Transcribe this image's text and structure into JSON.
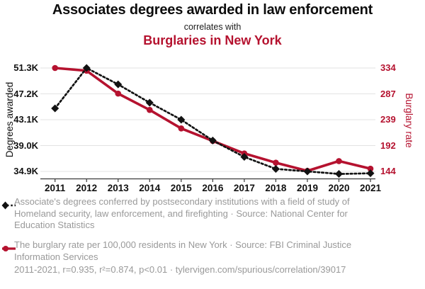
{
  "header": {
    "title": "Associates degrees awarded in law enforcement",
    "connector": "correlates with",
    "subtitle": "Burglaries in New York"
  },
  "colors": {
    "red": "#b5122f",
    "black": "#121212",
    "legend_gray": "#999999",
    "grid": "#e3e3e3",
    "axis": "#3a3a3a"
  },
  "chart_data": {
    "type": "line",
    "x": [
      2011,
      2012,
      2013,
      2014,
      2015,
      2016,
      2017,
      2018,
      2019,
      2020,
      2021
    ],
    "left_axis": {
      "label": "Degrees awarded",
      "tick_labels": [
        "51.3K",
        "47.2K",
        "43.1K",
        "39.0K",
        "34.9K"
      ],
      "tick_values": [
        51300,
        47200,
        43100,
        39000,
        34900
      ]
    },
    "right_axis": {
      "label": "Burglary rate",
      "tick_labels": [
        "334",
        "287",
        "239",
        "192",
        "144"
      ],
      "tick_values": [
        334,
        287,
        239,
        192,
        144
      ]
    },
    "series": [
      {
        "id": "degrees",
        "name": "Associate's degrees in homeland security, law enforcement, and firefighting",
        "axis": "left",
        "color": "#121212",
        "line_style": "dotted",
        "marker": "diamond",
        "values": [
          44900,
          51300,
          48700,
          45800,
          43100,
          39800,
          37200,
          35300,
          34900,
          34500,
          34600
        ]
      },
      {
        "id": "burglary",
        "name": "Burglary rate per 100,000 residents in New York",
        "axis": "right",
        "color": "#b5122f",
        "line_style": "solid",
        "marker": "circle",
        "values": [
          334,
          329,
          287,
          257,
          223,
          200,
          177,
          160,
          145,
          163,
          149
        ]
      }
    ],
    "grid": "horizontal-only",
    "legend_position": "below"
  },
  "legend": {
    "entries": [
      {
        "marker": "black-diamond-dotted-line",
        "text": "Associate's degrees conferred by postsecondary institutions with a field of study of Homeland security, law enforcement, and firefighting · Source: National Center for Education Statistics"
      },
      {
        "marker": "red-circle-solid-line",
        "text": "The burglary rate per 100,000 residents in New York · Source: FBI Criminal Justice Information Services"
      }
    ]
  },
  "footer": {
    "text": "2011-2021, r=0.935, r²=0.874, p<0.01 · tylervigen.com/spurious/correlation/39017"
  }
}
